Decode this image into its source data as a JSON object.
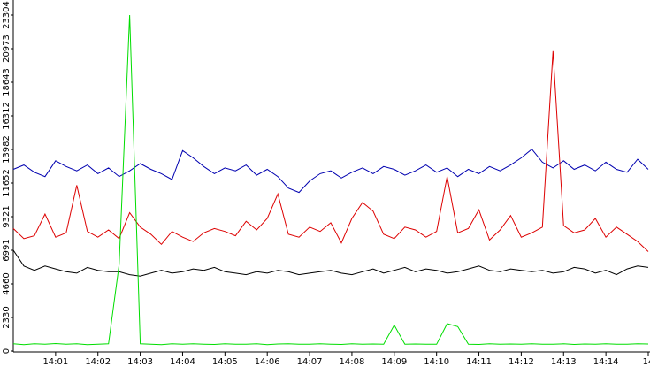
{
  "chart_data": {
    "type": "line",
    "x": [
      0,
      0.25,
      0.5,
      0.75,
      1,
      1.25,
      1.5,
      1.75,
      2,
      2.25,
      2.5,
      2.75,
      3,
      3.25,
      3.5,
      3.75,
      4,
      4.25,
      4.5,
      4.75,
      5,
      5.25,
      5.5,
      5.75,
      6,
      6.25,
      6.5,
      6.75,
      7,
      7.25,
      7.5,
      7.75,
      8,
      8.25,
      8.5,
      8.75,
      9,
      9.25,
      9.5,
      9.75,
      10,
      10.25,
      10.5,
      10.75,
      11,
      11.25,
      11.5,
      11.75,
      12,
      12.25,
      12.5,
      12.75,
      13,
      13.25,
      13.5,
      13.75,
      14,
      14.25,
      14.5,
      14.75,
      15
    ],
    "series": [
      {
        "color": "#0000b0",
        "values": [
          12600,
          12900,
          12400,
          12100,
          13200,
          12800,
          12500,
          12900,
          12300,
          12700,
          12100,
          12500,
          13000,
          12600,
          12300,
          11900,
          13900,
          13400,
          12800,
          12300,
          12700,
          12500,
          12900,
          12200,
          12600,
          12100,
          11300,
          11000,
          11800,
          12300,
          12500,
          12000,
          12400,
          12700,
          12300,
          12800,
          12600,
          12200,
          12500,
          12900,
          12400,
          12700,
          12100,
          12600,
          12300,
          12800,
          12500,
          12900,
          13400,
          14000,
          13100,
          12700,
          13200,
          12600,
          12900,
          12500,
          13100,
          12600,
          12400,
          13300,
          12600
        ]
      },
      {
        "color": "#000000",
        "values": [
          7000,
          5900,
          5600,
          5900,
          5700,
          5500,
          5400,
          5800,
          5600,
          5500,
          5500,
          5300,
          5200,
          5400,
          5600,
          5400,
          5500,
          5700,
          5600,
          5800,
          5500,
          5400,
          5300,
          5500,
          5400,
          5600,
          5500,
          5300,
          5400,
          5500,
          5600,
          5400,
          5300,
          5500,
          5700,
          5400,
          5600,
          5800,
          5500,
          5700,
          5600,
          5400,
          5500,
          5700,
          5900,
          5600,
          5500,
          5700,
          5600,
          5500,
          5600,
          5400,
          5500,
          5800,
          5700,
          5400,
          5600,
          5300,
          5700,
          5900,
          5800
        ]
      },
      {
        "color": "#dd0000",
        "values": [
          8500,
          7800,
          8000,
          9500,
          7900,
          8200,
          11500,
          8300,
          7900,
          8400,
          7800,
          9600,
          8600,
          8100,
          7400,
          8300,
          7900,
          7600,
          8200,
          8500,
          8300,
          8000,
          9000,
          8400,
          9200,
          10900,
          8100,
          7900,
          8600,
          8300,
          8900,
          7500,
          9200,
          10300,
          9700,
          8100,
          7800,
          8600,
          8400,
          7900,
          8300,
          12100,
          8200,
          8500,
          9800,
          7700,
          8400,
          9400,
          7900,
          8200,
          8600,
          20800,
          8700,
          8200,
          8400,
          9200,
          7900,
          8600,
          8100,
          7600,
          6900
        ]
      },
      {
        "color": "#00dd00",
        "values": [
          500,
          450,
          500,
          480,
          520,
          470,
          500,
          450,
          480,
          500,
          6000,
          23304,
          500,
          480,
          450,
          500,
          470,
          500,
          480,
          460,
          500,
          470,
          480,
          500,
          450,
          490,
          500,
          470,
          480,
          500,
          480,
          460,
          500,
          470,
          490,
          480,
          1800,
          470,
          490,
          480,
          470,
          1900,
          1700,
          480,
          460,
          500,
          470,
          490,
          480,
          500,
          480,
          470,
          500,
          460,
          490,
          480,
          500,
          470,
          480,
          500,
          490
        ]
      }
    ],
    "xlim": [
      0,
      15
    ],
    "xticks": [
      {
        "value": 1,
        "label": "14:01"
      },
      {
        "value": 2,
        "label": "14:02"
      },
      {
        "value": 3,
        "label": "14:03"
      },
      {
        "value": 4,
        "label": "14:04"
      },
      {
        "value": 5,
        "label": "14:05"
      },
      {
        "value": 6,
        "label": "14:06"
      },
      {
        "value": 7,
        "label": "14:07"
      },
      {
        "value": 8,
        "label": "14:08"
      },
      {
        "value": 9,
        "label": "14:09"
      },
      {
        "value": 10,
        "label": "14:10"
      },
      {
        "value": 11,
        "label": "14:11"
      },
      {
        "value": 12,
        "label": "14:12"
      },
      {
        "value": 13,
        "label": "14:13"
      },
      {
        "value": 14,
        "label": "14:14"
      },
      {
        "value": 15,
        "label": "14"
      }
    ],
    "ylim": [
      0,
      23304
    ],
    "yticks": [
      0,
      2330,
      4660,
      6991,
      9321,
      11652,
      13982,
      16312,
      18643,
      20973,
      23304
    ]
  }
}
